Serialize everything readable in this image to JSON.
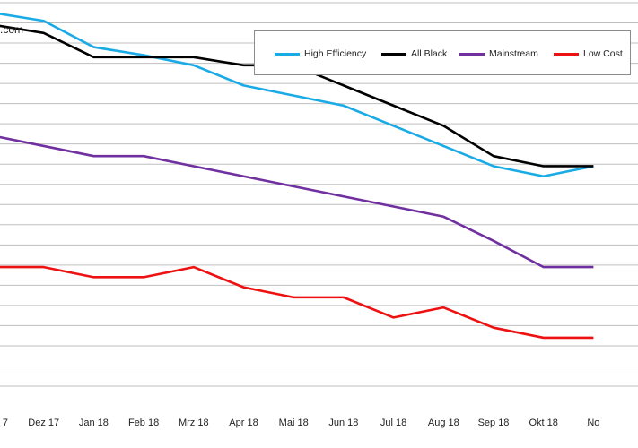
{
  "watermark": ".com",
  "chart_data": {
    "type": "line",
    "categories": [
      "7",
      "Dez 17",
      "Jan 18",
      "Feb 18",
      "Mrz 18",
      "Apr 18",
      "Mai 18",
      "Jun 18",
      "Jul 18",
      "Aug 18",
      "Sep 18",
      "Okt 18",
      "No"
    ],
    "ylim": [
      0,
      19
    ],
    "grid": true,
    "legend_position": "top-right",
    "series": [
      {
        "name": "High Efficiency",
        "color": "#1aabe6",
        "values": [
          18.5,
          18.1,
          16.8,
          16.4,
          15.9,
          14.9,
          14.4,
          13.9,
          12.9,
          11.9,
          10.9,
          10.4,
          10.9
        ]
      },
      {
        "name": "All Black",
        "color": "#000000",
        "values": [
          17.9,
          17.5,
          16.3,
          16.3,
          16.3,
          15.9,
          15.9,
          14.9,
          13.9,
          12.9,
          11.4,
          10.9,
          10.9
        ]
      },
      {
        "name": "Mainstream",
        "color": "#7030a0",
        "values": [
          12.4,
          11.9,
          11.4,
          11.4,
          10.9,
          10.4,
          9.9,
          9.4,
          8.9,
          8.4,
          7.2,
          5.9,
          5.9
        ]
      },
      {
        "name": "Low Cost",
        "color": "#ee1111",
        "values": [
          5.9,
          5.9,
          5.4,
          5.4,
          5.9,
          4.9,
          4.4,
          4.4,
          3.4,
          3.9,
          2.9,
          2.4,
          2.4
        ]
      }
    ]
  }
}
